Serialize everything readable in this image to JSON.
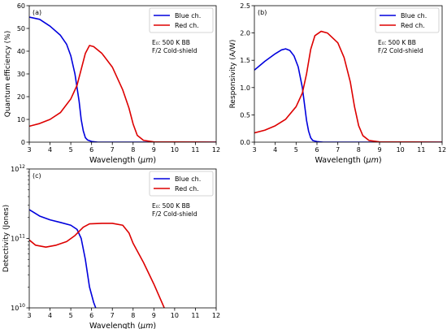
{
  "legend_entries": [
    "Blue ch.",
    "Red ch."
  ],
  "colors": {
    "blue": "#0000dd",
    "red": "#dd0000"
  },
  "chart_data": [
    {
      "type": "line",
      "panel": "(a)",
      "xlabel_prefix": "Wavelength (",
      "xlabel_unit": "μm",
      "xlabel_suffix": ")",
      "ylabel": "Quantum efficiency (%)",
      "xlim": [
        3,
        12
      ],
      "ylim": [
        0,
        60
      ],
      "xticks": [
        3,
        4,
        5,
        6,
        7,
        8,
        9,
        10,
        11,
        12
      ],
      "yticks": [
        0,
        10,
        20,
        30,
        40,
        50,
        60
      ],
      "ytick_labels": [
        "0",
        "10",
        "20",
        "30",
        "40",
        "50",
        "60"
      ],
      "ann1": "E₀: 500 K BB",
      "ann2": "F/2 Cold-shield",
      "legend": "top-right",
      "series": [
        {
          "name": "Blue ch.",
          "x": [
            3.0,
            3.5,
            4.0,
            4.5,
            4.8,
            5.0,
            5.2,
            5.4,
            5.5,
            5.6,
            5.7,
            5.8,
            6.0,
            6.3,
            12.0
          ],
          "y": [
            55,
            54,
            51,
            47,
            43,
            38,
            30,
            18,
            10,
            5,
            2,
            1,
            0.3,
            0,
            0
          ]
        },
        {
          "name": "Red ch.",
          "x": [
            3.0,
            3.5,
            4.0,
            4.5,
            5.0,
            5.3,
            5.5,
            5.7,
            5.9,
            6.1,
            6.5,
            7.0,
            7.5,
            7.8,
            8.0,
            8.2,
            8.5,
            9.0,
            12.0
          ],
          "y": [
            7,
            8.2,
            10,
            13,
            19,
            25,
            32,
            39,
            42.5,
            42,
            39,
            33,
            23,
            15,
            8,
            3,
            0.8,
            0.1,
            0
          ]
        }
      ]
    },
    {
      "type": "line",
      "panel": "(b)",
      "xlabel_prefix": "Wavelength (",
      "xlabel_unit": "μm",
      "xlabel_suffix": ")",
      "ylabel": "Responsivity (A/W)",
      "xlim": [
        3,
        12
      ],
      "ylim": [
        0,
        2.5
      ],
      "xticks": [
        3,
        4,
        5,
        6,
        7,
        8,
        9,
        10,
        11,
        12
      ],
      "yticks": [
        0,
        0.5,
        1.0,
        1.5,
        2.0,
        2.5
      ],
      "ytick_labels": [
        "0.0",
        "0.5",
        "1.0",
        "1.5",
        "2.0",
        "2.5"
      ],
      "ann1": "E₀: 500 K BB",
      "ann2": "F/2 Cold-shield",
      "legend": "top-right",
      "series": [
        {
          "name": "Blue ch.",
          "x": [
            3.0,
            3.5,
            4.0,
            4.3,
            4.5,
            4.7,
            4.9,
            5.1,
            5.3,
            5.4,
            5.5,
            5.6,
            5.7,
            5.8,
            6.0,
            6.3,
            12.0
          ],
          "y": [
            1.32,
            1.48,
            1.62,
            1.69,
            1.71,
            1.68,
            1.58,
            1.38,
            1.0,
            0.7,
            0.4,
            0.2,
            0.08,
            0.03,
            0.01,
            0,
            0
          ]
        },
        {
          "name": "Red ch.",
          "x": [
            3.0,
            3.5,
            4.0,
            4.5,
            5.0,
            5.3,
            5.5,
            5.7,
            5.9,
            6.2,
            6.5,
            7.0,
            7.3,
            7.6,
            7.8,
            8.0,
            8.2,
            8.5,
            9.0,
            12.0
          ],
          "y": [
            0.17,
            0.22,
            0.3,
            0.42,
            0.65,
            0.9,
            1.25,
            1.7,
            1.95,
            2.03,
            2.0,
            1.82,
            1.55,
            1.1,
            0.65,
            0.3,
            0.12,
            0.03,
            0.005,
            0
          ]
        }
      ]
    },
    {
      "type": "line",
      "panel": "(c)",
      "xlabel_prefix": "Wavelength (",
      "xlabel_unit": "μm",
      "xlabel_suffix": ")",
      "ylabel": "Detectivity (Jones)",
      "xlim": [
        3,
        12
      ],
      "ylim": [
        10000000000.0,
        1000000000000.0
      ],
      "yscale": "log",
      "xticks": [
        3,
        4,
        5,
        6,
        7,
        8,
        9,
        10,
        11,
        12
      ],
      "yticks": [
        10000000000.0,
        100000000000.0,
        1000000000000.0
      ],
      "ytick_base": "10",
      "ytick_exps": [
        "10",
        "11",
        "12"
      ],
      "ann1": "E₀: 500 K BB",
      "ann2": "F/2 Cold-shield",
      "legend": "top-right",
      "series": [
        {
          "name": "Blue ch.",
          "x": [
            3.0,
            3.5,
            4.0,
            4.5,
            5.0,
            5.3,
            5.5,
            5.7,
            5.9,
            6.1,
            6.2
          ],
          "y": [
            260000000000.0,
            210000000000.0,
            185000000000.0,
            170000000000.0,
            155000000000.0,
            135000000000.0,
            100000000000.0,
            50000000000.0,
            20000000000.0,
            12000000000.0,
            10000000000.0
          ]
        },
        {
          "name": "Red ch.",
          "x": [
            3.0,
            3.3,
            3.8,
            4.3,
            4.8,
            5.2,
            5.6,
            5.9,
            6.5,
            7.0,
            7.5,
            7.8,
            8.0,
            8.5,
            9.0,
            9.5
          ],
          "y": [
            95000000000.0,
            80000000000.0,
            75000000000.0,
            80000000000.0,
            90000000000.0,
            110000000000.0,
            145000000000.0,
            162000000000.0,
            165000000000.0,
            165000000000.0,
            155000000000.0,
            120000000000.0,
            85000000000.0,
            45000000000.0,
            22000000000.0,
            10000000000.0
          ]
        }
      ]
    }
  ]
}
